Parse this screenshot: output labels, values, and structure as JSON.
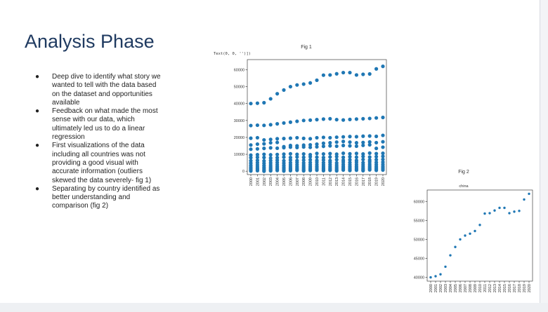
{
  "slide": {
    "title": "Analysis Phase",
    "bullets": [
      "Deep dive to identify what story we wanted to tell with the data based on the dataset and opportunities available",
      "Feedback on what made the most sense with our data, which ultimately led us to do a linear regression",
      "First visualizations of the data including all countries was not providing a good visual with accurate information (outliers skewed the data severely- fig 1)",
      "Separating by country identified as better understanding and comparison (fig 2)"
    ]
  },
  "chart_data": [
    {
      "type": "scatter",
      "figure_label": "Fig 1",
      "output_text": "Text(0, 0, '')])",
      "x": [
        "2000",
        "2001",
        "2002",
        "2003",
        "2004",
        "2005",
        "2006",
        "2007",
        "2008",
        "2009",
        "2010",
        "2011",
        "2012",
        "2013",
        "2014",
        "2015",
        "2016",
        "2017",
        "2018",
        "2019",
        "2020"
      ],
      "ylim": [
        -2000,
        66000
      ],
      "yticks": [
        0,
        10000,
        20000,
        30000,
        40000,
        50000,
        60000
      ],
      "point_color": "#1f77b4",
      "series": [
        {
          "values": [
            40000,
            40200,
            40500,
            42800,
            45800,
            48000,
            50000,
            51000,
            51500,
            52200,
            53800,
            56800,
            56900,
            57600,
            58300,
            58300,
            56900,
            57300,
            57500,
            60500,
            62000
          ]
        },
        {
          "values": [
            27000,
            27200,
            27100,
            27500,
            28000,
            28500,
            29000,
            29500,
            30000,
            30200,
            30500,
            30800,
            31000,
            30500,
            30300,
            30600,
            30800,
            31000,
            31200,
            31500,
            31800
          ]
        },
        {
          "values": [
            19500,
            19800,
            18500,
            18800,
            19200,
            19300,
            19500,
            19800,
            19400,
            19200,
            19800,
            20000,
            19800,
            20100,
            20300,
            20500,
            20400,
            20700,
            20800,
            20600,
            21200
          ]
        },
        {
          "values": [
            15500,
            16000,
            16200,
            16800,
            17000,
            14500,
            15200,
            15000,
            15400,
            15600,
            16000,
            16500,
            16800,
            17200,
            17600,
            17200,
            16800,
            17000,
            17300,
            16900,
            17400
          ]
        },
        {
          "values": [
            13000,
            13200,
            13500,
            13800,
            13600,
            13900,
            14200,
            14000,
            14300,
            14100,
            14400,
            14700,
            15000,
            14800,
            15200,
            15000,
            14800,
            15300,
            15600,
            13500,
            14200
          ]
        },
        {
          "values": [
            9500,
            9800,
            10000,
            9700,
            9900,
            10100,
            10300,
            10000,
            10200,
            9800,
            10500,
            10200,
            10400,
            10100,
            10600,
            10300,
            10500,
            10200,
            10700,
            10400,
            10600
          ]
        },
        {
          "values": [
            8000,
            8200,
            8100,
            7800,
            8000,
            8300,
            8100,
            8400,
            8200,
            8500,
            8300,
            8100,
            8400,
            8600,
            8200,
            8500,
            8300,
            8700,
            8400,
            8600,
            8800
          ]
        },
        {
          "values": [
            6200,
            6400,
            6100,
            6300,
            6500,
            6200,
            6600,
            6300,
            6500,
            6700,
            6400,
            6600,
            6300,
            6800,
            6500,
            6700,
            6400,
            6900,
            6600,
            6800,
            7000
          ]
        },
        {
          "values": [
            4800,
            5000,
            4700,
            4900,
            5100,
            4800,
            5000,
            5200,
            4900,
            5100,
            5300,
            5000,
            5200,
            4900,
            5400,
            5100,
            5300,
            5000,
            5500,
            5200,
            5400
          ]
        },
        {
          "values": [
            3500,
            3700,
            3400,
            3600,
            3800,
            3500,
            3700,
            3900,
            3600,
            3800,
            4000,
            3700,
            3900,
            3600,
            4100,
            3800,
            4000,
            3700,
            4200,
            3900,
            4100
          ]
        },
        {
          "values": [
            2400,
            2600,
            2300,
            2500,
            2700,
            2400,
            2600,
            2800,
            2500,
            2700,
            2900,
            2600,
            2800,
            2500,
            3000,
            2700,
            2900,
            2600,
            3100,
            2800,
            3000
          ]
        },
        {
          "values": [
            1500,
            1700,
            1400,
            1600,
            1800,
            1500,
            1700,
            1900,
            1600,
            1800,
            2000,
            1700,
            1900,
            1600,
            2100,
            1800,
            2000,
            1700,
            2200,
            1900,
            2100
          ]
        },
        {
          "values": [
            700,
            900,
            600,
            800,
            1000,
            700,
            900,
            1100,
            800,
            1000,
            1200,
            900,
            1100,
            800,
            1300,
            1000,
            1200,
            900,
            1400,
            1100,
            1300
          ]
        },
        {
          "values": [
            100,
            300,
            0,
            200,
            400,
            100,
            300,
            500,
            200,
            400,
            600,
            300,
            500,
            200,
            700,
            400,
            600,
            300,
            800,
            500,
            700
          ]
        }
      ]
    },
    {
      "type": "scatter",
      "figure_label": "Fig 2",
      "title": "china",
      "x": [
        "2000",
        "2001",
        "2002",
        "2003",
        "2004",
        "2005",
        "2006",
        "2007",
        "2008",
        "2009",
        "2010",
        "2011",
        "2012",
        "2013",
        "2014",
        "2015",
        "2016",
        "2017",
        "2018",
        "2019",
        "2020"
      ],
      "ylim": [
        39000,
        63000
      ],
      "yticks": [
        40000,
        45000,
        50000,
        55000,
        60000
      ],
      "point_color": "#1f77b4",
      "values": [
        40000,
        40300,
        40800,
        42800,
        45800,
        48000,
        50000,
        51000,
        51500,
        52200,
        53800,
        56800,
        56900,
        57600,
        58300,
        58300,
        56900,
        57300,
        57500,
        60500,
        62000
      ]
    }
  ]
}
